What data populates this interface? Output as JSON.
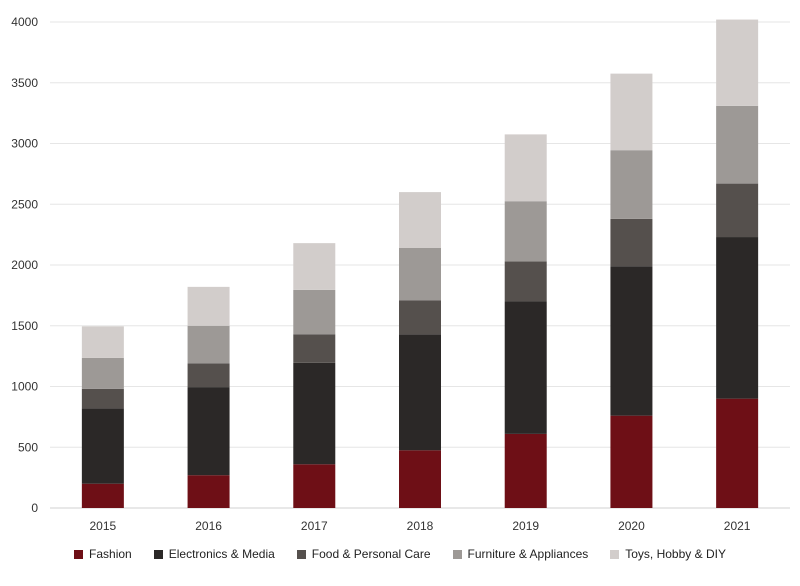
{
  "chart_data": {
    "type": "bar",
    "stacked": true,
    "categories": [
      "2015",
      "2016",
      "2017",
      "2018",
      "2019",
      "2020",
      "2021"
    ],
    "ylim": [
      0,
      4000
    ],
    "yticks": [
      "0",
      "500",
      "1000",
      "1500",
      "2000",
      "2500",
      "3000",
      "3500",
      "4000"
    ],
    "grid": true,
    "legend_position": "bottom",
    "series": [
      {
        "name": "Fashion",
        "color": "#6e0f16",
        "values": [
          200,
          270,
          360,
          475,
          610,
          760,
          900
        ]
      },
      {
        "name": "Electronics & Media",
        "color": "#2b2827",
        "values": [
          620,
          725,
          835,
          955,
          1090,
          1230,
          1330
        ]
      },
      {
        "name": "Food & Personal Care",
        "color": "#55504d",
        "values": [
          160,
          195,
          235,
          280,
          330,
          390,
          440
        ]
      },
      {
        "name": "Furniture & Appliances",
        "color": "#9d9996",
        "values": [
          255,
          310,
          365,
          430,
          495,
          565,
          640
        ]
      },
      {
        "name": "Toys, Hobby & DIY",
        "color": "#d2cdcb",
        "values": [
          260,
          320,
          385,
          460,
          550,
          630,
          710
        ]
      }
    ]
  }
}
